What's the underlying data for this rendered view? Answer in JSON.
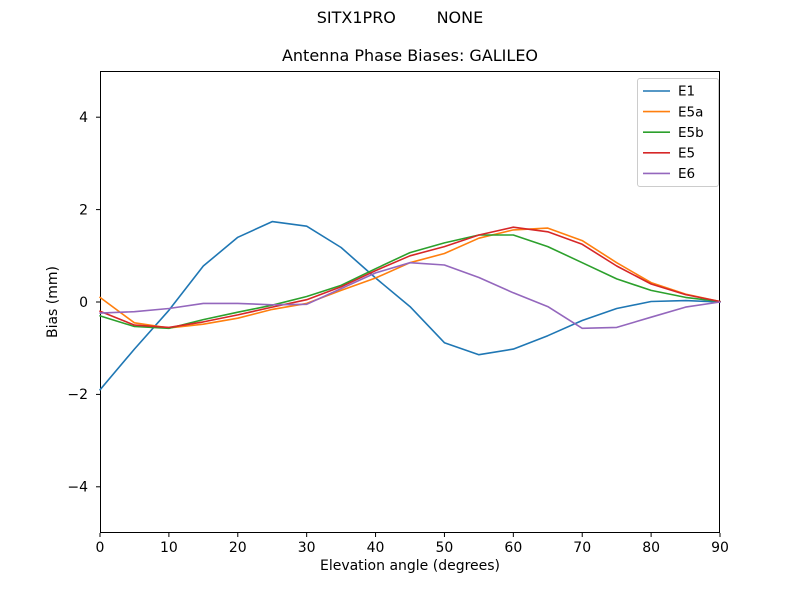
{
  "chart_data": {
    "type": "line",
    "suptitle": "SITX1PRO        NONE",
    "title": "Antenna Phase Biases: GALILEO",
    "xlabel": "Elevation angle (degrees)",
    "ylabel": "Bias (mm)",
    "xlim": [
      0,
      90
    ],
    "ylim": [
      -5,
      5
    ],
    "x_ticks": [
      0,
      10,
      20,
      30,
      40,
      50,
      60,
      70,
      80,
      90
    ],
    "y_ticks": [
      -4,
      -2,
      0,
      2,
      4
    ],
    "grid": false,
    "legend_position": "upper right",
    "x": [
      0,
      5,
      10,
      15,
      20,
      25,
      30,
      35,
      40,
      45,
      50,
      55,
      60,
      65,
      70,
      75,
      80,
      85,
      90
    ],
    "series": [
      {
        "name": "E1",
        "color": "#1f77b4",
        "values": [
          -1.9,
          -1.02,
          -0.18,
          0.78,
          1.4,
          1.74,
          1.64,
          1.18,
          0.52,
          -0.1,
          -0.88,
          -1.14,
          -1.02,
          -0.73,
          -0.4,
          -0.14,
          0.01,
          0.03,
          0.0
        ]
      },
      {
        "name": "E5a",
        "color": "#ff7f0e",
        "values": [
          0.1,
          -0.45,
          -0.56,
          -0.48,
          -0.35,
          -0.16,
          -0.03,
          0.25,
          0.52,
          0.85,
          1.05,
          1.38,
          1.56,
          1.6,
          1.33,
          0.85,
          0.42,
          0.17,
          0.01
        ]
      },
      {
        "name": "E5b",
        "color": "#2ca02c",
        "values": [
          -0.3,
          -0.53,
          -0.57,
          -0.38,
          -0.22,
          -0.07,
          0.12,
          0.36,
          0.72,
          1.07,
          1.28,
          1.45,
          1.45,
          1.2,
          0.85,
          0.5,
          0.25,
          0.1,
          0.01
        ]
      },
      {
        "name": "E5",
        "color": "#d62728",
        "values": [
          -0.2,
          -0.5,
          -0.55,
          -0.43,
          -0.28,
          -0.11,
          0.05,
          0.33,
          0.68,
          1.0,
          1.2,
          1.45,
          1.62,
          1.52,
          1.25,
          0.78,
          0.39,
          0.16,
          0.01
        ]
      },
      {
        "name": "E6",
        "color": "#9467bd",
        "values": [
          -0.24,
          -0.21,
          -0.14,
          -0.03,
          -0.03,
          -0.06,
          -0.05,
          0.29,
          0.63,
          0.85,
          0.8,
          0.53,
          0.2,
          -0.1,
          -0.57,
          -0.55,
          -0.33,
          -0.11,
          0.0
        ]
      }
    ]
  },
  "style": {
    "spine_color": "#000000",
    "background": "#ffffff",
    "legend_border_color": "#cccccc"
  }
}
